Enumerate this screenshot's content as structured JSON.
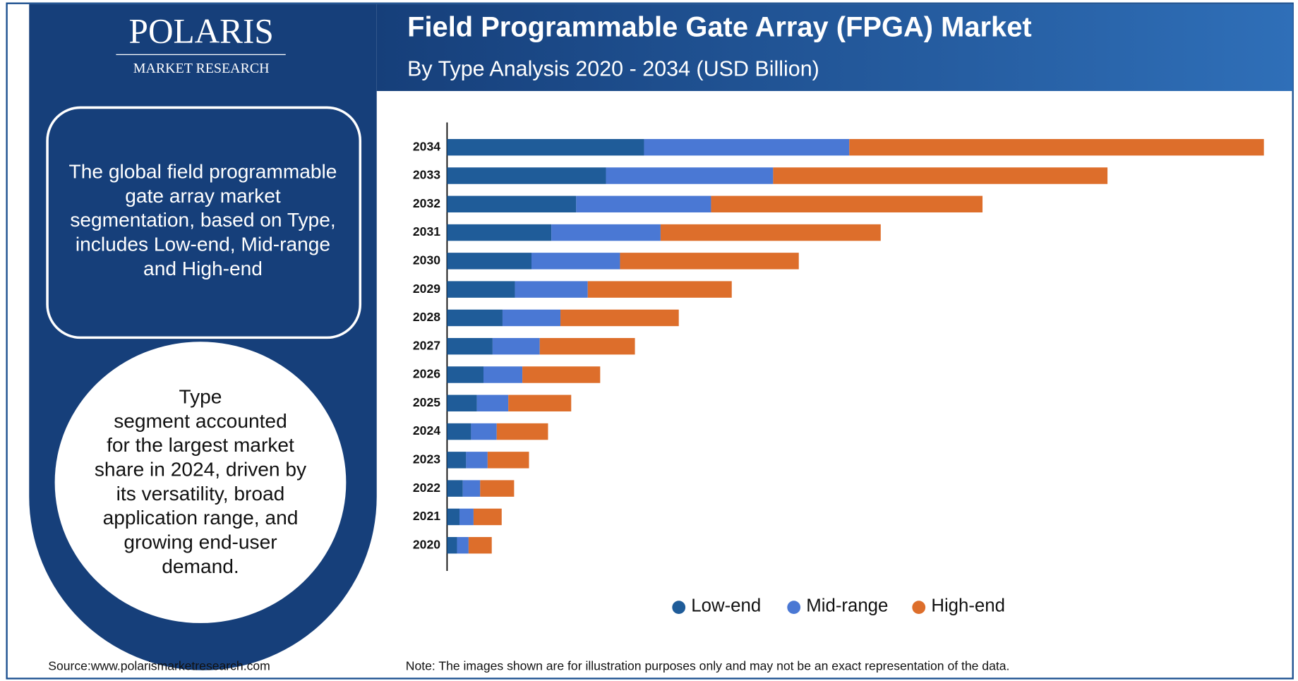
{
  "brand": {
    "name": "POLARIS",
    "tagline": "MARKET RESEARCH"
  },
  "info_box": [
    "The global field programmable",
    "gate array market",
    "segmentation, based on Type,",
    "includes Low-end, Mid-range",
    "and High-end"
  ],
  "info_circle": [
    "Type",
    "segment accounted",
    "for the largest market",
    "share in 2024, driven by",
    "its versatility, broad",
    "application range, and",
    "growing end-user",
    "demand."
  ],
  "footer": {
    "source": "Source:www.polarismarketresearch.com",
    "note": "Note: The images shown are for illustration purposes only and may not be an exact representation of the data."
  },
  "chart_data": {
    "type": "stacked-barh",
    "title": "Field Programmable Gate Array (FPGA) Market",
    "subtitle": "By Type Analysis 2020 - 2034 (USD Billion)",
    "categories": [
      "2020",
      "2021",
      "2022",
      "2023",
      "2024",
      "2025",
      "2026",
      "2027",
      "2028",
      "2029",
      "2030",
      "2031",
      "2032",
      "2033",
      "2034"
    ],
    "xlim": [
      0,
      100
    ],
    "series": [
      {
        "name": "Low-end",
        "color": "#1f5c99",
        "values": [
          1.2,
          1.5,
          1.9,
          2.3,
          2.9,
          3.6,
          4.4,
          5.5,
          6.7,
          8.2,
          10.2,
          12.6,
          15.6,
          19.2,
          23.8
        ]
      },
      {
        "name": "Mid-range",
        "color": "#4a78d4",
        "values": [
          1.4,
          1.7,
          2.1,
          2.6,
          3.1,
          3.8,
          4.7,
          5.7,
          7.0,
          8.8,
          10.7,
          13.2,
          16.3,
          20.2,
          24.8
        ]
      },
      {
        "name": "High-end",
        "color": "#dd6e2b",
        "values": [
          2.8,
          3.4,
          4.1,
          5.0,
          6.2,
          7.6,
          9.4,
          11.5,
          14.3,
          17.4,
          21.6,
          26.6,
          32.8,
          40.4,
          50.1
        ]
      }
    ]
  }
}
